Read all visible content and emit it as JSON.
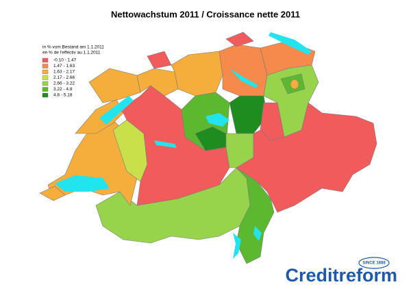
{
  "title": "Nettowachstum 2011 / Croissance nette 2011",
  "legend": {
    "title_lines": [
      "in % vom Bestand am 1.1.2011",
      "en % de l'effectiv au 1.1.2011"
    ],
    "items": [
      {
        "label": "-0.10 - 1.47",
        "color": "#f25b5b"
      },
      {
        "label": "1.47 - 1.63",
        "color": "#f58a4b"
      },
      {
        "label": "1.63 - 2.17",
        "color": "#f5ad3c"
      },
      {
        "label": "2.17 - 2.66",
        "color": "#c9e04b"
      },
      {
        "label": "2.66 - 3.22",
        "color": "#98d34c"
      },
      {
        "label": "3.22 - 4.8",
        "color": "#5bb82f"
      },
      {
        "label": "4.8 - 5.18",
        "color": "#1f8c1f"
      }
    ]
  },
  "logo": {
    "name": "Creditreform",
    "badge": "SINCE 1888"
  }
}
